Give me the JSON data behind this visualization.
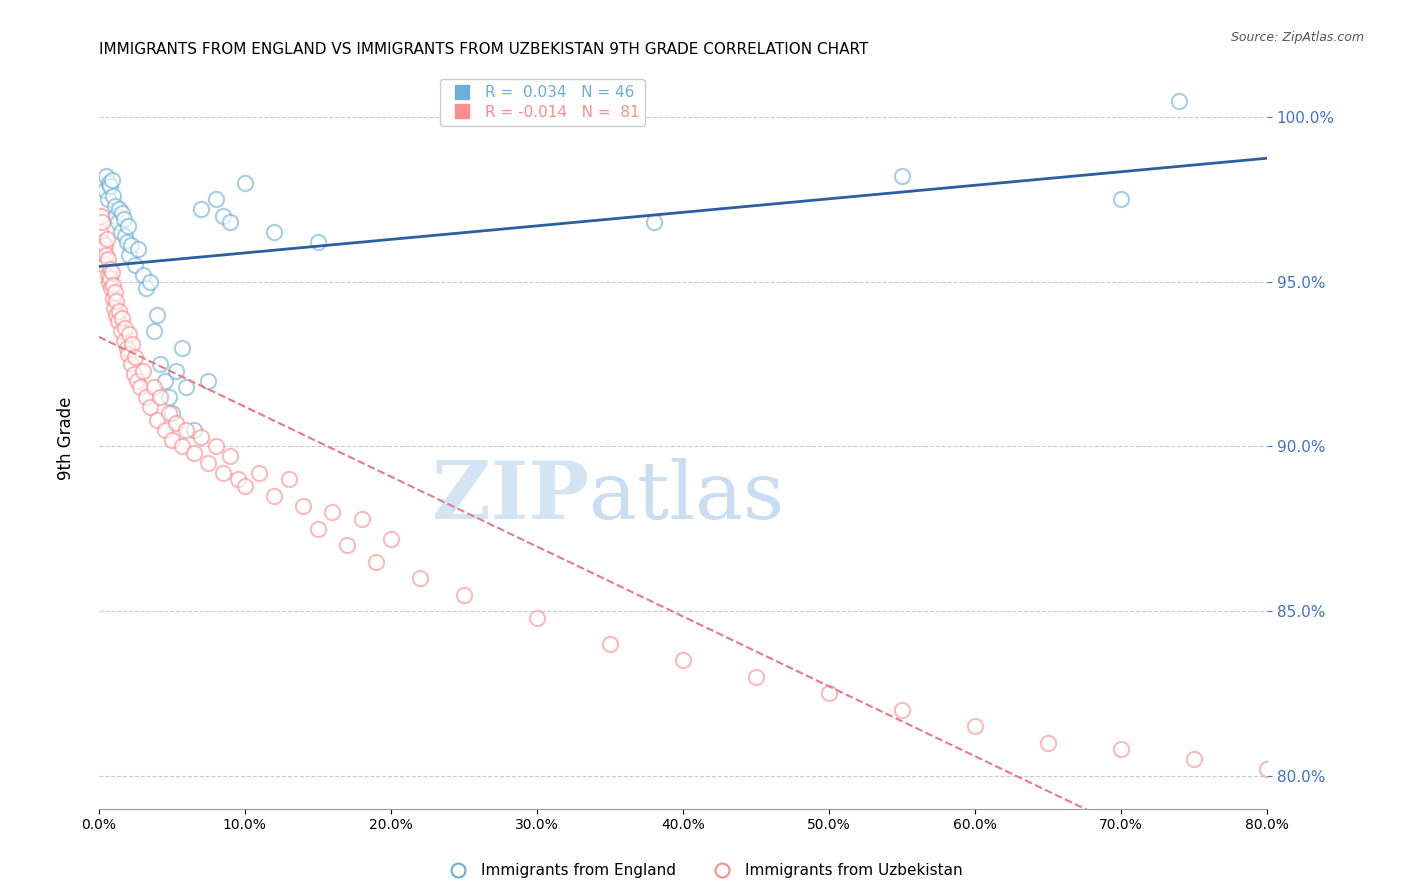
{
  "title": "IMMIGRANTS FROM ENGLAND VS IMMIGRANTS FROM UZBEKISTAN 9TH GRADE CORRELATION CHART",
  "source": "Source: ZipAtlas.com",
  "xlabel": "",
  "ylabel": "9th Grade",
  "xlim": [
    0.0,
    80.0
  ],
  "ylim": [
    79.0,
    101.5
  ],
  "yticks": [
    80.0,
    85.0,
    90.0,
    95.0,
    100.0
  ],
  "xticks": [
    0.0,
    10.0,
    20.0,
    30.0,
    40.0,
    50.0,
    60.0,
    70.0,
    80.0
  ],
  "england_R": 0.034,
  "england_N": 46,
  "uzbekistan_R": -0.014,
  "uzbekistan_N": 81,
  "england_color": "#6baed6",
  "uzbekistan_color": "#fc8d8d",
  "england_x": [
    0.4,
    0.5,
    0.6,
    0.7,
    0.8,
    0.9,
    1.0,
    1.1,
    1.2,
    1.3,
    1.4,
    1.5,
    1.6,
    1.7,
    1.8,
    1.9,
    2.0,
    2.1,
    2.2,
    2.5,
    2.7,
    3.0,
    3.2,
    3.5,
    3.8,
    4.0,
    4.2,
    4.5,
    4.8,
    5.0,
    5.3,
    5.7,
    6.0,
    6.5,
    7.0,
    7.5,
    8.0,
    8.5,
    9.0,
    10.0,
    12.0,
    15.0,
    38.0,
    55.0,
    70.0,
    74.0
  ],
  "england_y": [
    97.8,
    98.2,
    97.5,
    98.0,
    97.9,
    98.1,
    97.6,
    97.3,
    97.0,
    96.8,
    97.2,
    96.5,
    97.1,
    96.9,
    96.4,
    96.2,
    96.7,
    95.8,
    96.1,
    95.5,
    96.0,
    95.2,
    94.8,
    95.0,
    93.5,
    94.0,
    92.5,
    92.0,
    91.5,
    91.0,
    92.3,
    93.0,
    91.8,
    90.5,
    97.2,
    92.0,
    97.5,
    97.0,
    96.8,
    98.0,
    96.5,
    96.2,
    96.8,
    98.2,
    97.5,
    100.5
  ],
  "uzbekistan_x": [
    0.1,
    0.15,
    0.2,
    0.25,
    0.3,
    0.35,
    0.4,
    0.45,
    0.5,
    0.55,
    0.6,
    0.65,
    0.7,
    0.75,
    0.8,
    0.85,
    0.9,
    0.95,
    1.0,
    1.05,
    1.1,
    1.15,
    1.2,
    1.3,
    1.4,
    1.5,
    1.6,
    1.7,
    1.8,
    1.9,
    2.0,
    2.1,
    2.2,
    2.3,
    2.4,
    2.5,
    2.6,
    2.8,
    3.0,
    3.2,
    3.5,
    3.8,
    4.0,
    4.2,
    4.5,
    4.8,
    5.0,
    5.3,
    5.7,
    6.0,
    6.5,
    7.0,
    7.5,
    8.0,
    8.5,
    9.0,
    9.5,
    10.0,
    11.0,
    12.0,
    13.0,
    14.0,
    15.0,
    16.0,
    17.0,
    18.0,
    19.0,
    20.0,
    22.0,
    25.0,
    30.0,
    35.0,
    40.0,
    45.0,
    50.0,
    55.0,
    60.0,
    65.0,
    70.0,
    75.0,
    80.0
  ],
  "uzbekistan_y": [
    96.5,
    97.0,
    96.8,
    96.2,
    95.9,
    96.0,
    95.5,
    96.1,
    95.8,
    96.3,
    95.2,
    95.7,
    95.0,
    95.4,
    95.1,
    94.8,
    95.3,
    94.5,
    94.9,
    94.2,
    94.7,
    94.0,
    94.4,
    93.8,
    94.1,
    93.5,
    93.9,
    93.2,
    93.6,
    93.0,
    92.8,
    93.4,
    92.5,
    93.1,
    92.2,
    92.7,
    92.0,
    91.8,
    92.3,
    91.5,
    91.2,
    91.8,
    90.8,
    91.5,
    90.5,
    91.0,
    90.2,
    90.7,
    90.0,
    90.5,
    89.8,
    90.3,
    89.5,
    90.0,
    89.2,
    89.7,
    89.0,
    88.8,
    89.2,
    88.5,
    89.0,
    88.2,
    87.5,
    88.0,
    87.0,
    87.8,
    86.5,
    87.2,
    86.0,
    85.5,
    84.8,
    84.0,
    83.5,
    83.0,
    82.5,
    82.0,
    81.5,
    81.0,
    80.8,
    80.5,
    80.2
  ],
  "watermark_zip": "ZIP",
  "watermark_atlas": "atlas",
  "background_color": "#ffffff",
  "grid_color": "#cccccc",
  "title_fontsize": 11,
  "axis_label_color": "#4472c4"
}
